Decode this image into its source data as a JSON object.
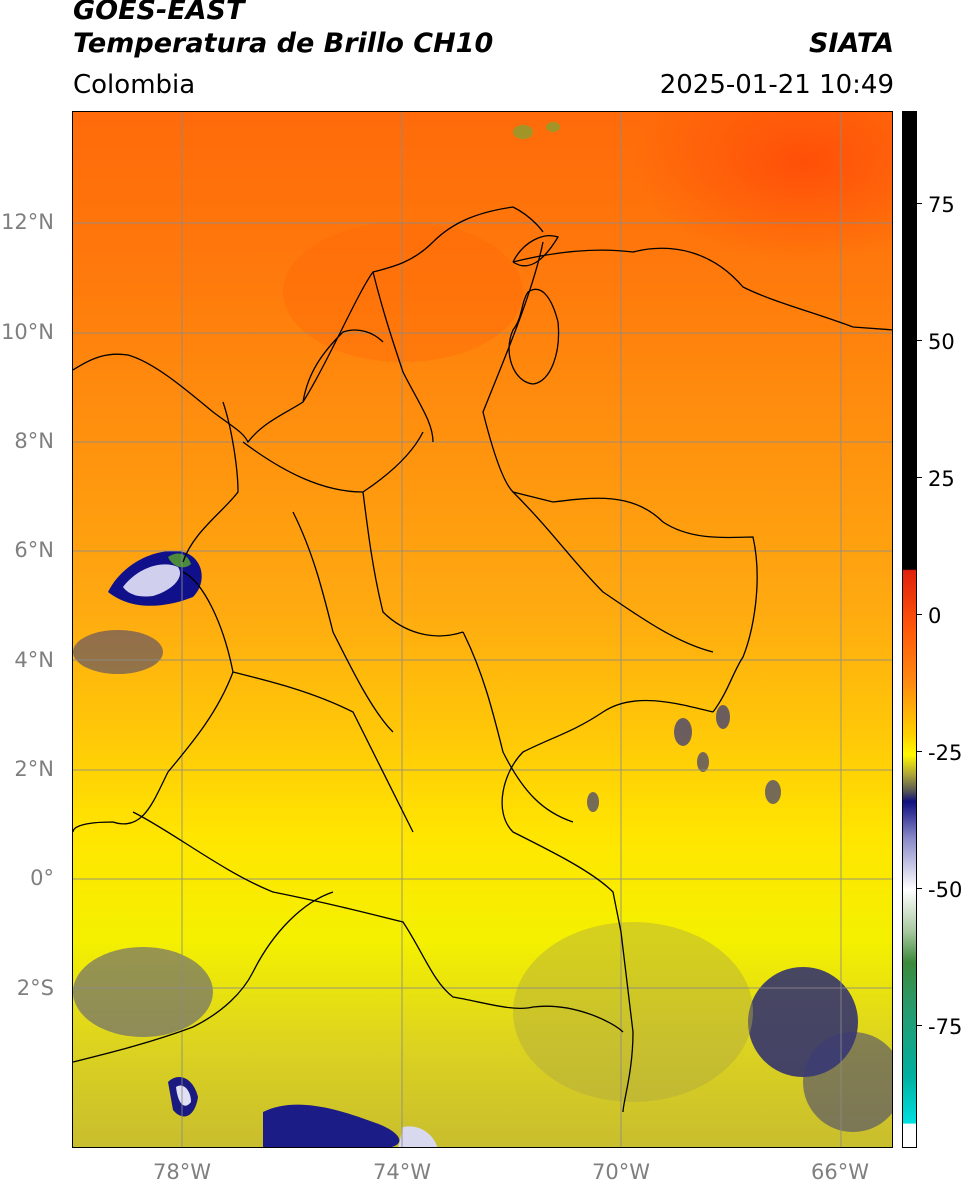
{
  "header": {
    "satellite": "GOES-EAST",
    "product": "Temperatura de Brillo CH10",
    "region": "Colombia",
    "organization": "SIATA",
    "timestamp": "2025-01-21 10:49"
  },
  "map": {
    "lat_labels": [
      "12°N",
      "10°N",
      "8°N",
      "6°N",
      "4°N",
      "2°N",
      "0°",
      "2°S"
    ],
    "lon_labels": [
      "78°W",
      "74°W",
      "70°W",
      "66°W"
    ],
    "gridlines": true
  },
  "colorbar": {
    "ticks": [
      "75",
      "50",
      "25",
      "0",
      "-25",
      "-50",
      "-75"
    ],
    "colors": {
      "black": "#000000",
      "red": "#e0200c",
      "orange": "#ff8a10",
      "yellow": "#fffa00",
      "olive": "#a8a13a",
      "navy": "#101080",
      "white": "#ffffff",
      "green": "#3c8a3a",
      "cyan": "#00e0e0"
    }
  }
}
